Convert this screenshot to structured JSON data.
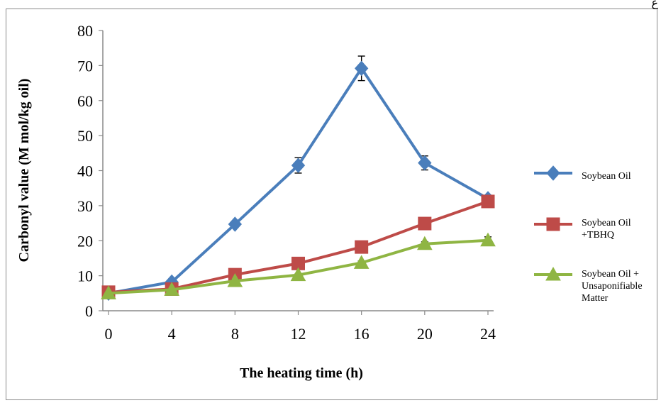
{
  "corner_glyph": "ع",
  "chart_data": {
    "type": "line",
    "title": "",
    "xlabel": "The heating time (h)",
    "ylabel": "Carbonyl value (M mol/kg oil)",
    "x": [
      0,
      4,
      8,
      12,
      16,
      20,
      24
    ],
    "xticks": [
      "0",
      "4",
      "8",
      "12",
      "16",
      "20",
      "24"
    ],
    "ylim": [
      0,
      80
    ],
    "yticks": [
      "0",
      "10",
      "20",
      "30",
      "40",
      "50",
      "60",
      "70",
      "80"
    ],
    "grid": false,
    "legend_position": "right",
    "series": [
      {
        "name": "Soybean Oil",
        "legend_lines": [
          "Soybean Oil"
        ],
        "marker": "diamond",
        "color": "#4a7ebb",
        "values": [
          5,
          8.2,
          24.7,
          41.5,
          69.2,
          42.2,
          32.0
        ],
        "errors": [
          0.3,
          0.5,
          0.7,
          2.2,
          3.5,
          2.0,
          1.0
        ]
      },
      {
        "name": "Soybean Oil +TBHQ",
        "legend_lines": [
          "Soybean Oil",
          "+TBHQ"
        ],
        "marker": "square",
        "color": "#be4b48",
        "values": [
          5.3,
          6.2,
          10.3,
          13.5,
          18.2,
          24.9,
          31.2
        ],
        "errors": [
          0.3,
          0.3,
          0.5,
          0.5,
          0.6,
          0.7,
          0.8
        ]
      },
      {
        "name": "Soybean Oil + Unsaponifiable Matter",
        "legend_lines": [
          "Soybean Oil +",
          "Unsaponifiable",
          "Matter"
        ],
        "marker": "triangle",
        "color": "#8fb543",
        "values": [
          5.0,
          6.0,
          8.5,
          10.2,
          13.7,
          19.1,
          20.1
        ],
        "errors": [
          0.3,
          0.3,
          0.4,
          0.4,
          0.5,
          0.6,
          1.0
        ]
      }
    ]
  }
}
